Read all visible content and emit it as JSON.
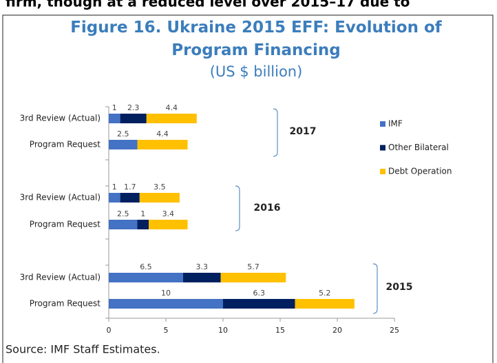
{
  "header_text": "firm, though at a reduced level over 2015–17 due to",
  "chart_data": {
    "type": "bar",
    "orientation": "horizontal",
    "stacked": true,
    "title": "Figure 16. Ukraine 2015 EFF: Evolution of Program Financing",
    "subtitle": "(US $ billion)",
    "groups": [
      "2017",
      "2016",
      "2015"
    ],
    "categories": [
      "3rd Review (Actual)",
      "Program Request",
      "3rd Review (Actual)",
      "Program Request",
      "3rd Review (Actual)",
      "Program Request"
    ],
    "series": [
      {
        "name": "IMF",
        "color": "#4472c4",
        "values": [
          1,
          2.5,
          1,
          2.5,
          6.5,
          10
        ]
      },
      {
        "name": "Other Bilateral",
        "color": "#002060",
        "values": [
          2.3,
          null,
          1.7,
          1,
          3.3,
          6.3
        ]
      },
      {
        "name": "Debt Operation",
        "color": "#ffc000",
        "values": [
          4.4,
          4.4,
          3.5,
          3.4,
          5.7,
          5.2
        ]
      }
    ],
    "xlim": [
      0,
      25
    ],
    "xticks": [
      0,
      5,
      10,
      15,
      20,
      25
    ],
    "legend": "right",
    "source": "Source: IMF Staff Estimates."
  }
}
